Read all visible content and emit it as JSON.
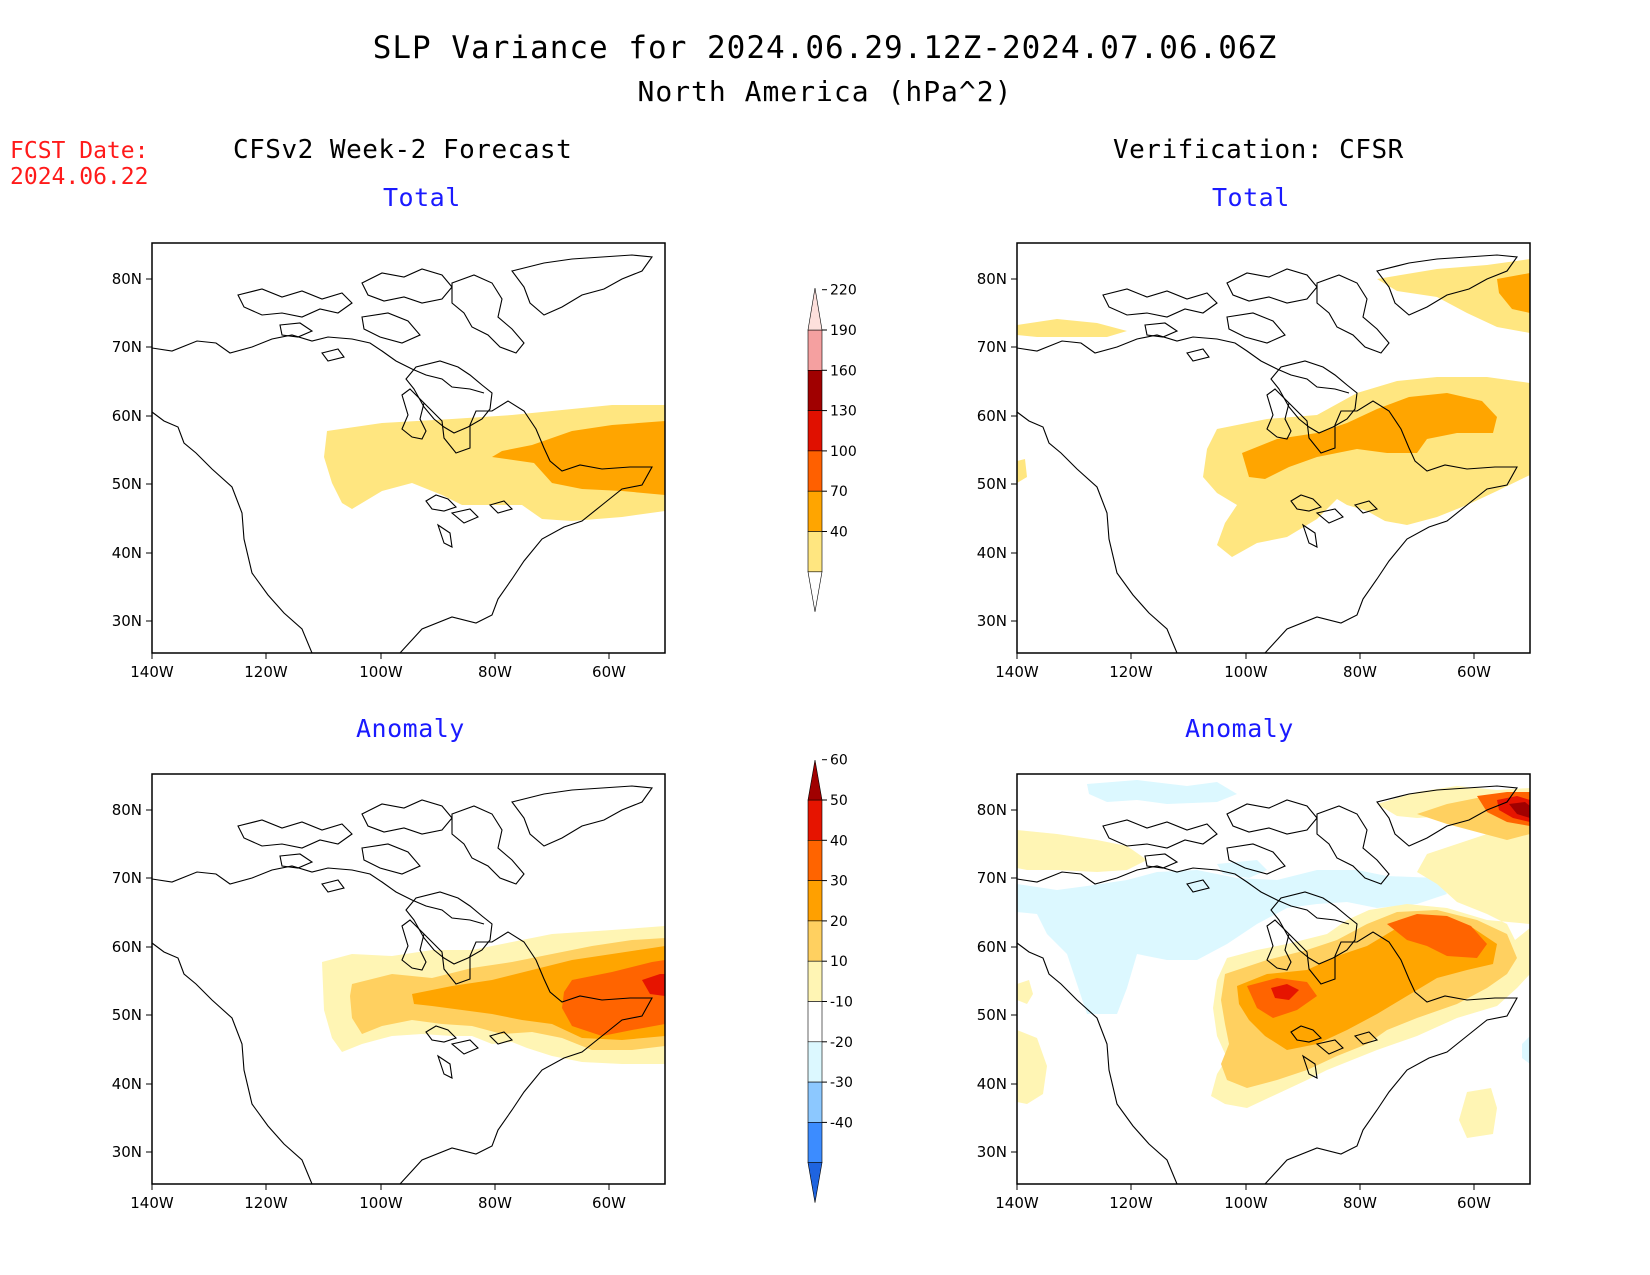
{
  "title": "SLP Variance for 2024.06.29.12Z-2024.07.06.06Z",
  "subtitle": "North America (hPa^2)",
  "fcst_date": {
    "label": "FCST Date:",
    "value": "2024.06.22"
  },
  "columns": {
    "left": "CFSv2 Week-2 Forecast",
    "right": "Verification: CFSR"
  },
  "panel_titles": {
    "top_left": "Total",
    "top_right": "Total",
    "bottom_left": "Anomaly",
    "bottom_right": "Anomaly"
  },
  "map": {
    "lon_ticks": [
      "140W",
      "120W",
      "100W",
      "80W",
      "60W"
    ],
    "lat_ticks": [
      "80N",
      "70N",
      "60N",
      "50N",
      "40N",
      "30N"
    ]
  },
  "colorbar_total": {
    "levels": [
      "40",
      "70",
      "100",
      "130",
      "160",
      "190",
      "220"
    ],
    "colors": [
      "#ffffff",
      "#ffe680",
      "#ffa500",
      "#ff6000",
      "#e01000",
      "#a00000",
      "#f5a0a0",
      "#fde0dc"
    ]
  },
  "colorbar_anomaly": {
    "levels": [
      "-40",
      "-30",
      "-20",
      "-10",
      "10",
      "20",
      "30",
      "40",
      "50",
      "60"
    ],
    "colors": [
      "#1e64e0",
      "#3c8cff",
      "#8cc8ff",
      "#dcf8ff",
      "#ffffff",
      "#fff5b4",
      "#ffd060",
      "#ffa000",
      "#ff6400",
      "#e61400",
      "#a00000"
    ]
  },
  "fill_colors": {
    "yellow": "#ffe680",
    "orange": "#ffa500",
    "lightyellow": "#fff5b4",
    "gold": "#ffd060",
    "darkorange": "#ff6400",
    "red": "#e61400",
    "darkred": "#a00000",
    "cyan": "#dcf8ff"
  }
}
